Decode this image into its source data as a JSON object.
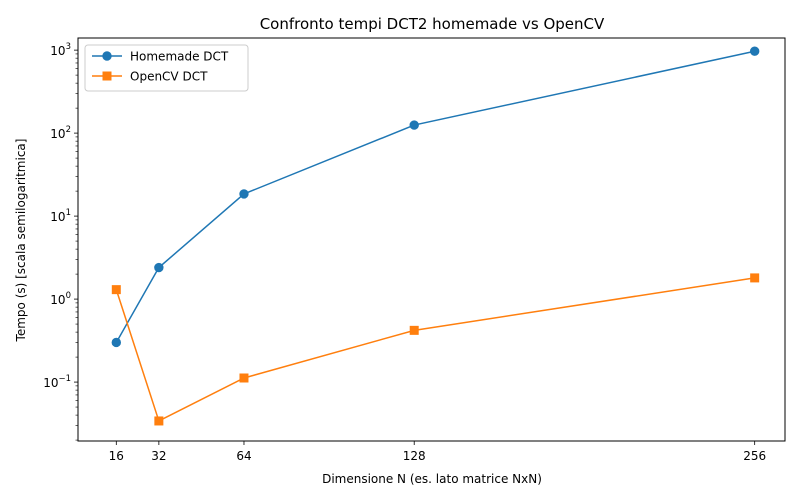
{
  "chart_data": {
    "type": "line",
    "title": "Confronto tempi DCT2 homemade vs OpenCV",
    "xlabel": "Dimensione N (es. lato matrice NxN)",
    "ylabel": "Tempo (s) [scala semilogaritmica]",
    "x": [
      16,
      32,
      64,
      128,
      256
    ],
    "x_ticks": [
      16,
      32,
      64,
      128,
      256
    ],
    "xlim": [
      1.6,
      267.4
    ],
    "y_scale": "log",
    "ylim": [
      0.0195,
      1400
    ],
    "y_ticks": [
      {
        "value": 0.1,
        "base": "10",
        "exp": "−1"
      },
      {
        "value": 1,
        "base": "10",
        "exp": "0"
      },
      {
        "value": 10,
        "base": "10",
        "exp": "1"
      },
      {
        "value": 100,
        "base": "10",
        "exp": "2"
      },
      {
        "value": 1000,
        "base": "10",
        "exp": "3"
      }
    ],
    "grid": false,
    "legend_position": "top-left",
    "series": [
      {
        "name": "Homemade DCT",
        "marker": "circle",
        "color": "#1f77b4",
        "values": [
          0.3,
          2.4,
          18.5,
          125,
          970
        ]
      },
      {
        "name": "OpenCV DCT",
        "marker": "square",
        "color": "#ff7f0e",
        "values": [
          1.3,
          0.034,
          0.112,
          0.42,
          1.8
        ]
      }
    ]
  }
}
